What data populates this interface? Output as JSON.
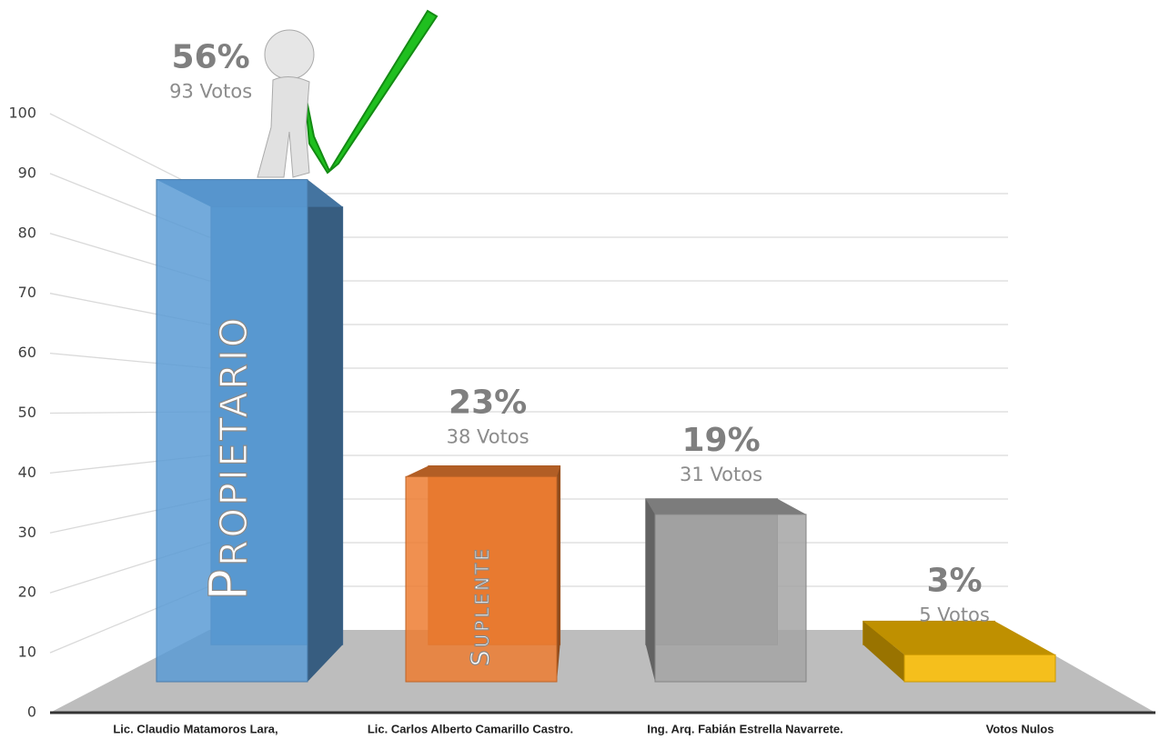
{
  "chart_data": {
    "type": "bar3d",
    "categories": [
      "Lic. Claudio Matamoros Lara,",
      "Lic. Carlos Alberto Camarillo Castro.",
      "Ing. Arq. Fabián Estrella Navarrete.",
      "Votos Nulos"
    ],
    "values": [
      93,
      38,
      31,
      5
    ],
    "value_labels": [
      "93 Votos",
      "38 Votos",
      "31 Votos",
      "5 Votos"
    ],
    "percent_labels": [
      "56%",
      "23%",
      "19%",
      "3%"
    ],
    "bar_annotations": [
      "Propietario",
      "Suplente",
      null,
      null
    ],
    "colors": [
      "#5b9bd5",
      "#ed7d31",
      "#a5a5a5",
      "#ffc000"
    ],
    "ylim": [
      0,
      100
    ],
    "yticks": [
      0,
      10,
      20,
      30,
      40,
      50,
      60,
      70,
      80,
      90,
      100
    ],
    "grid": true
  }
}
